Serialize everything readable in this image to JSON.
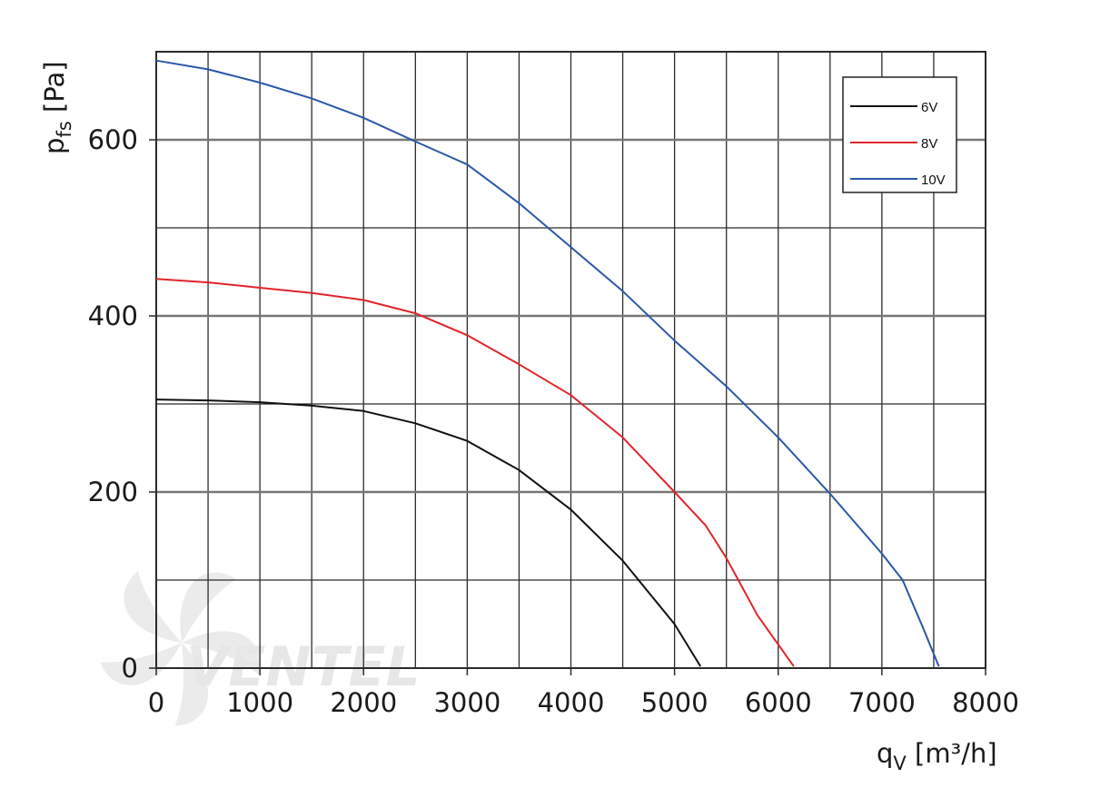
{
  "chart_data": {
    "type": "line",
    "xlabel": {
      "main": "q",
      "sub": "V",
      "unit": " [m³/h]"
    },
    "ylabel": {
      "main": "p",
      "sub": "fs",
      "unit": " [Pa]"
    },
    "xlim": [
      0,
      8000
    ],
    "ylim": [
      0,
      700
    ],
    "x_ticks": [
      0,
      1000,
      2000,
      3000,
      4000,
      5000,
      6000,
      7000,
      8000
    ],
    "x_tick_labels": [
      "0",
      "1000",
      "2000",
      "3000",
      "4000",
      "5000",
      "6000",
      "7000",
      "8000"
    ],
    "y_ticks": [
      0,
      200,
      400,
      600
    ],
    "y_tick_labels": [
      "0",
      "200",
      "400",
      "600"
    ],
    "grid": true,
    "x_grid_step": 500,
    "y_grid_step": 100,
    "legend_position": "top-right",
    "watermark": "VENTEL",
    "series": [
      {
        "name": "6V",
        "color": "#111111",
        "points": [
          [
            0,
            305
          ],
          [
            500,
            304
          ],
          [
            1000,
            302
          ],
          [
            1500,
            298
          ],
          [
            2000,
            292
          ],
          [
            2500,
            278
          ],
          [
            3000,
            258
          ],
          [
            3500,
            225
          ],
          [
            4000,
            180
          ],
          [
            4500,
            122
          ],
          [
            5000,
            50
          ],
          [
            5250,
            2
          ]
        ]
      },
      {
        "name": "8V",
        "color": "#e0242b",
        "points": [
          [
            0,
            442
          ],
          [
            500,
            438
          ],
          [
            1000,
            432
          ],
          [
            1500,
            426
          ],
          [
            2000,
            418
          ],
          [
            2500,
            403
          ],
          [
            3000,
            378
          ],
          [
            3500,
            345
          ],
          [
            4000,
            310
          ],
          [
            4500,
            262
          ],
          [
            5000,
            200
          ],
          [
            5300,
            162
          ],
          [
            5500,
            125
          ],
          [
            5800,
            60
          ],
          [
            6150,
            2
          ]
        ]
      },
      {
        "name": "10V",
        "color": "#2a57a8",
        "points": [
          [
            0,
            690
          ],
          [
            500,
            680
          ],
          [
            1000,
            665
          ],
          [
            1500,
            647
          ],
          [
            2000,
            625
          ],
          [
            2500,
            598
          ],
          [
            3000,
            572
          ],
          [
            3500,
            528
          ],
          [
            4000,
            478
          ],
          [
            4500,
            428
          ],
          [
            5000,
            372
          ],
          [
            5500,
            320
          ],
          [
            6000,
            262
          ],
          [
            6500,
            198
          ],
          [
            7000,
            130
          ],
          [
            7200,
            100
          ],
          [
            7400,
            45
          ],
          [
            7550,
            2
          ]
        ]
      }
    ]
  }
}
